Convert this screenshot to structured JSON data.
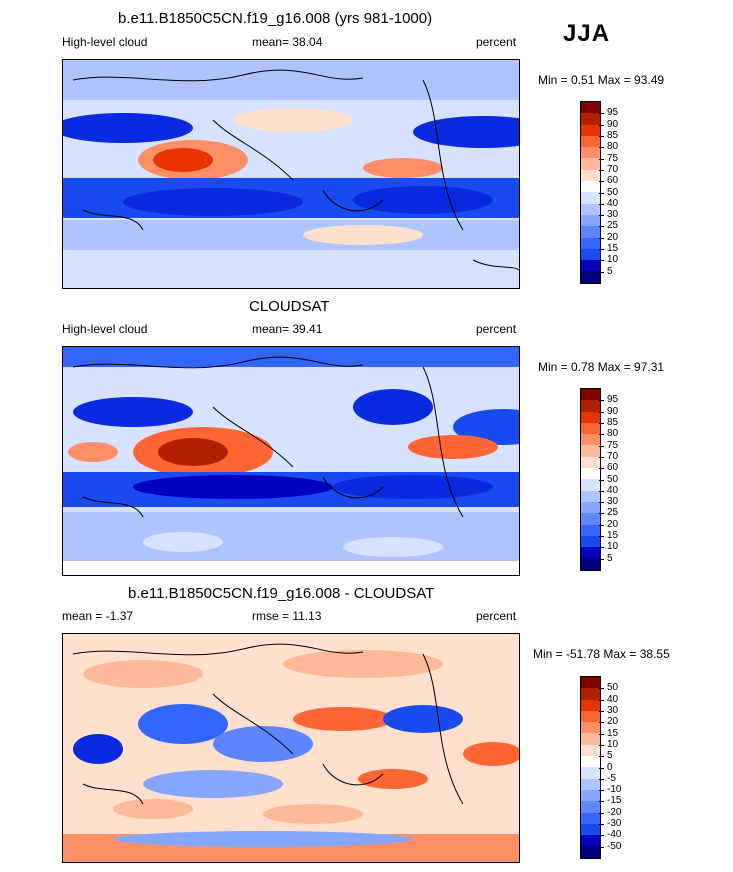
{
  "season": "JJA",
  "panels": [
    {
      "title": "b.e11.B1850C5CN.f19_g16.008 (yrs 981-1000)",
      "left_label": "High-level cloud",
      "center_label": "mean=  38.04",
      "right_label": "percent",
      "minmax": "Min =   0.51 Max =  93.49"
    },
    {
      "title": "CLOUDSAT",
      "left_label": "High-level cloud",
      "center_label": "mean=  39.41",
      "right_label": "percent",
      "minmax": "Min =   0.78 Max =  97.31"
    },
    {
      "title": "b.e11.B1850C5CN.f19_g16.008 - CLOUDSAT",
      "left_label": "mean =  -1.37",
      "center_label": "rmse =  11.13",
      "right_label": "percent",
      "minmax": "Min = -51.78 Max =  38.55"
    }
  ],
  "chart_data": [
    {
      "type": "heatmap",
      "title": "b.e11.B1850C5CN.f19_g16.008 (yrs 981-1000)",
      "variable": "High-level cloud",
      "units": "percent",
      "mean": 38.04,
      "min": 0.51,
      "max": 93.49,
      "colorbar_levels": [
        5,
        10,
        15,
        20,
        25,
        30,
        40,
        50,
        60,
        70,
        75,
        80,
        85,
        90,
        95
      ]
    },
    {
      "type": "heatmap",
      "title": "CLOUDSAT",
      "variable": "High-level cloud",
      "units": "percent",
      "mean": 39.41,
      "min": 0.78,
      "max": 97.31,
      "colorbar_levels": [
        5,
        10,
        15,
        20,
        25,
        30,
        40,
        50,
        60,
        70,
        75,
        80,
        85,
        90,
        95
      ]
    },
    {
      "type": "heatmap",
      "title": "b.e11.B1850C5CN.f19_g16.008 - CLOUDSAT",
      "units": "percent",
      "mean": -1.37,
      "rmse": 11.13,
      "min": -51.78,
      "max": 38.55,
      "colorbar_levels": [
        -50,
        -40,
        -30,
        -20,
        -15,
        -10,
        -5,
        0,
        5,
        10,
        15,
        20,
        30,
        40,
        50
      ]
    }
  ],
  "colors": {
    "abs_scale": [
      "#00007f",
      "#0000c0",
      "#0a2ae0",
      "#1a4bf0",
      "#3366ff",
      "#5c85ff",
      "#85a6ff",
      "#adc4ff",
      "#d6e2ff",
      "#ffffff",
      "#ffe0cc",
      "#ffb899",
      "#ff8f66",
      "#ff6633",
      "#e63300",
      "#b32000",
      "#800000"
    ],
    "diff_scale": [
      "#00007f",
      "#0000c0",
      "#0a2ae0",
      "#1a4bf0",
      "#3366ff",
      "#5c85ff",
      "#85a6ff",
      "#adc4ff",
      "#d6e2ff",
      "#ffffff",
      "#ffe0cc",
      "#ffb899",
      "#ff8f66",
      "#ff6633",
      "#e63300",
      "#b32000",
      "#800000"
    ]
  }
}
